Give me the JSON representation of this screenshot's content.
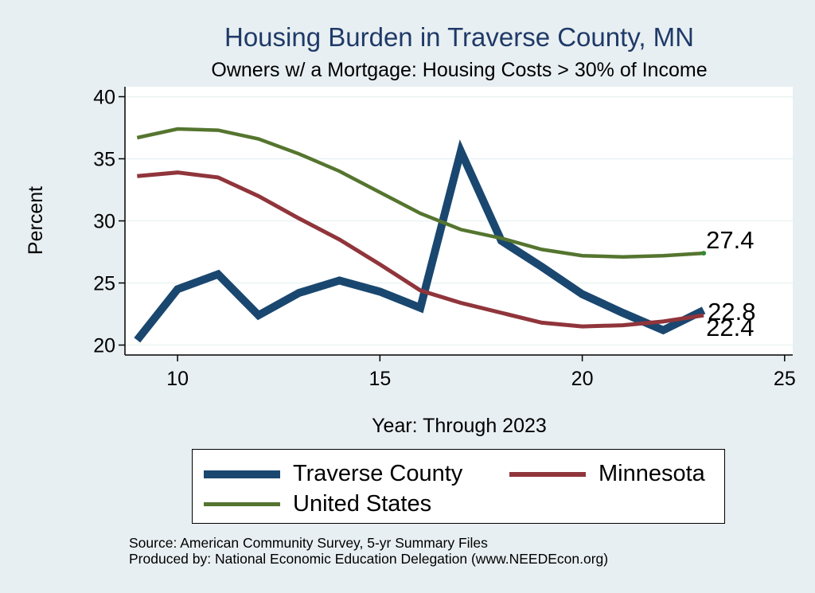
{
  "chart_data": {
    "type": "line",
    "title": "Housing Burden in Traverse County, MN",
    "subtitle": "Owners w/ a Mortgage: Housing Costs > 30% of Income",
    "xlabel": "Year: Through 2023",
    "ylabel": "Percent",
    "xlim": [
      8.7,
      25.2
    ],
    "ylim": [
      19.2,
      40.8
    ],
    "xticks": [
      10,
      15,
      20,
      25
    ],
    "yticks": [
      20,
      25,
      30,
      35,
      40
    ],
    "grid": true,
    "legend_position": "bottom",
    "series": [
      {
        "name": "Traverse County",
        "color": "#1a476f",
        "x": [
          9,
          10,
          11,
          12,
          13,
          14,
          15,
          16,
          17,
          18,
          19,
          20,
          21,
          22,
          23
        ],
        "values": [
          20.4,
          24.5,
          25.7,
          22.4,
          24.2,
          25.2,
          24.3,
          23.0,
          35.6,
          28.4,
          26.3,
          24.1,
          22.6,
          21.2,
          22.8
        ],
        "end_label": "22.8"
      },
      {
        "name": "Minnesota",
        "color": "#90353b",
        "x": [
          9,
          10,
          11,
          12,
          13,
          14,
          15,
          16,
          17,
          18,
          19,
          20,
          21,
          22,
          23
        ],
        "values": [
          33.6,
          33.9,
          33.5,
          32.0,
          30.2,
          28.5,
          26.5,
          24.4,
          23.4,
          22.6,
          21.8,
          21.5,
          21.6,
          21.9,
          22.4
        ],
        "end_label": "22.4"
      },
      {
        "name": "United States",
        "color": "#55752f",
        "x": [
          9,
          10,
          11,
          12,
          13,
          14,
          15,
          16,
          17,
          18,
          19,
          20,
          21,
          22,
          23
        ],
        "values": [
          36.7,
          37.4,
          37.3,
          36.6,
          35.4,
          34.0,
          32.3,
          30.6,
          29.3,
          28.6,
          27.7,
          27.2,
          27.1,
          27.2,
          27.4
        ],
        "end_label": "27.4"
      }
    ]
  },
  "legend": {
    "items": [
      {
        "label": "Traverse County",
        "color": "#1a476f"
      },
      {
        "label": "Minnesota",
        "color": "#90353b"
      },
      {
        "label": "United States",
        "color": "#55752f"
      }
    ]
  },
  "source": {
    "line1": "Source: American Community Survey, 5-yr Summary Files",
    "line2": "Produced by: National Economic Education Delegation (www.NEEDEcon.org)"
  }
}
